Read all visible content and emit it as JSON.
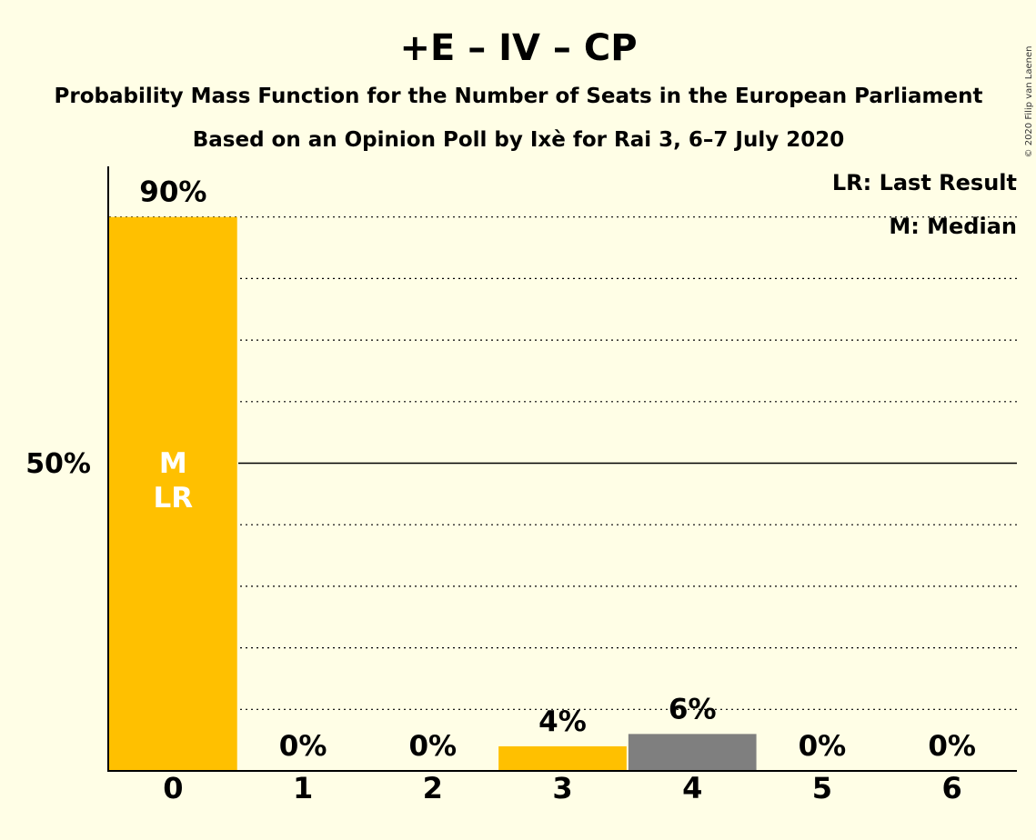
{
  "chart_data": {
    "type": "bar",
    "title": "+E – IV – CP",
    "subtitle": "Probability Mass Function for the Number of Seats in the European Parliament",
    "subtitle2": "Based on an Opinion Poll by Ixè for Rai 3, 6–7 July 2020",
    "categories": [
      "0",
      "1",
      "2",
      "3",
      "4",
      "5",
      "6"
    ],
    "values": [
      90,
      0,
      0,
      4,
      6,
      0,
      0
    ],
    "value_labels": [
      "90%",
      "0%",
      "0%",
      "4%",
      "6%",
      "0%",
      "0%"
    ],
    "bar_colors": [
      "#FFC000",
      "#FFC000",
      "#FFC000",
      "#FFC000",
      "#7F7F7F",
      "#7F7F7F",
      "#7F7F7F"
    ],
    "ylim": [
      0,
      100
    ],
    "ytick_label": "50%",
    "ytick_value": 50,
    "median_marker": "M",
    "last_result_marker": "LR",
    "marker_category_index": 0,
    "legend": [
      "LR: Last Result",
      "M: Median"
    ],
    "legend_position": "top-right",
    "copyright": "© 2020 Filip van Laenen"
  }
}
